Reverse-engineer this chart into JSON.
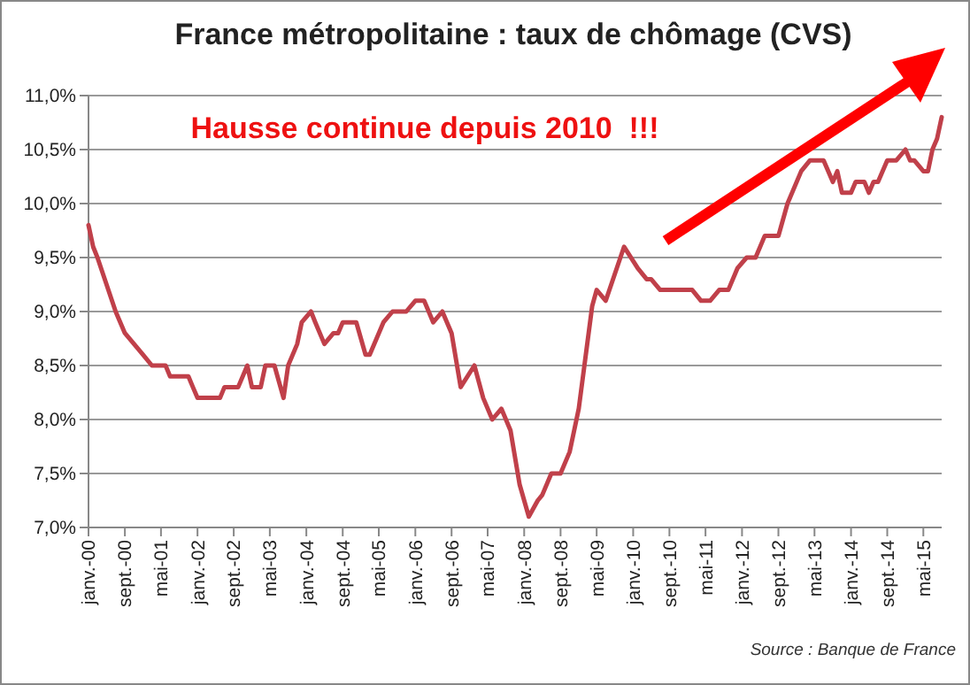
{
  "chart_data": {
    "type": "line",
    "title": "France métropolitaine : taux de chômage (CVS)",
    "annotations": [
      "Hausse continue depuis 2010  !!!",
      "Source : Banque de France"
    ],
    "x": [
      "2000-01",
      "2000-02",
      "2000-03",
      "2000-07",
      "2000-09",
      "2000-11",
      "2001-01",
      "2001-03",
      "2001-06",
      "2001-07",
      "2001-11",
      "2001-12",
      "2002-01",
      "2002-06",
      "2002-07",
      "2002-10",
      "2002-12",
      "2003-01",
      "2003-03",
      "2003-04",
      "2003-06",
      "2003-08",
      "2003-09",
      "2003-11",
      "2003-12",
      "2004-02",
      "2004-03",
      "2004-05",
      "2004-07",
      "2004-08",
      "2004-09",
      "2004-12",
      "2005-02",
      "2005-03",
      "2005-06",
      "2005-08",
      "2005-11",
      "2006-01",
      "2006-03",
      "2006-05",
      "2006-07",
      "2006-09",
      "2006-11",
      "2007-02",
      "2007-04",
      "2007-06",
      "2007-08",
      "2007-10",
      "2007-12",
      "2008-02",
      "2008-04",
      "2008-05",
      "2008-07",
      "2008-09",
      "2008-11",
      "2009-01",
      "2009-04",
      "2009-05",
      "2009-07",
      "2009-11",
      "2010-02",
      "2010-04",
      "2010-05",
      "2010-07",
      "2011-02",
      "2011-04",
      "2011-06",
      "2011-08",
      "2011-10",
      "2011-12",
      "2012-02",
      "2012-04",
      "2012-06",
      "2012-09",
      "2012-11",
      "2013-02",
      "2013-04",
      "2013-07",
      "2013-09",
      "2013-10",
      "2013-11",
      "2014-01",
      "2014-02",
      "2014-04",
      "2014-05",
      "2014-06",
      "2014-07",
      "2014-09",
      "2014-11",
      "2015-01",
      "2015-02",
      "2015-03",
      "2015-05",
      "2015-06",
      "2015-07",
      "2015-08",
      "2015-09"
    ],
    "series": [
      {
        "color": "#c0404a",
        "values": [
          9.8,
          9.6,
          9.5,
          9.0,
          8.8,
          8.7,
          8.6,
          8.5,
          8.5,
          8.4,
          8.4,
          8.3,
          8.2,
          8.2,
          8.3,
          8.3,
          8.5,
          8.3,
          8.3,
          8.5,
          8.5,
          8.2,
          8.5,
          8.7,
          8.9,
          9.0,
          8.9,
          8.7,
          8.8,
          8.8,
          8.9,
          8.9,
          8.6,
          8.6,
          8.9,
          9.0,
          9.0,
          9.1,
          9.1,
          8.9,
          9.0,
          8.8,
          8.3,
          8.5,
          8.2,
          8.0,
          8.1,
          7.9,
          7.4,
          7.1,
          7.25,
          7.3,
          7.5,
          7.5,
          7.7,
          8.1,
          9.05,
          9.2,
          9.1,
          9.6,
          9.4,
          9.3,
          9.3,
          9.2,
          9.2,
          9.1,
          9.1,
          9.2,
          9.2,
          9.4,
          9.5,
          9.5,
          9.7,
          9.7,
          10.0,
          10.3,
          10.4,
          10.4,
          10.2,
          10.3,
          10.1,
          10.1,
          10.2,
          10.2,
          10.1,
          10.2,
          10.2,
          10.4,
          10.4,
          10.5,
          10.4,
          10.4,
          10.3,
          10.3,
          10.5,
          10.6,
          10.8
        ]
      }
    ],
    "xlim": [
      "2000-01",
      "2015-09"
    ],
    "xticks": [
      {
        "value": "2000-01",
        "label": "janv.-00"
      },
      {
        "value": "2000-09",
        "label": "sept.-00"
      },
      {
        "value": "2001-05",
        "label": "mai-01"
      },
      {
        "value": "2002-01",
        "label": "janv.-02"
      },
      {
        "value": "2002-09",
        "label": "sept.-02"
      },
      {
        "value": "2003-05",
        "label": "mai-03"
      },
      {
        "value": "2004-01",
        "label": "janv.-04"
      },
      {
        "value": "2004-09",
        "label": "sept.-04"
      },
      {
        "value": "2005-05",
        "label": "mai-05"
      },
      {
        "value": "2006-01",
        "label": "janv.-06"
      },
      {
        "value": "2006-09",
        "label": "sept.-06"
      },
      {
        "value": "2007-05",
        "label": "mai-07"
      },
      {
        "value": "2008-01",
        "label": "janv.-08"
      },
      {
        "value": "2008-09",
        "label": "sept.-08"
      },
      {
        "value": "2009-05",
        "label": "mai-09"
      },
      {
        "value": "2010-01",
        "label": "janv.-10"
      },
      {
        "value": "2010-09",
        "label": "sept.-10"
      },
      {
        "value": "2011-05",
        "label": "mai-11"
      },
      {
        "value": "2012-01",
        "label": "janv.-12"
      },
      {
        "value": "2012-09",
        "label": "sept.-12"
      },
      {
        "value": "2013-05",
        "label": "mai-13"
      },
      {
        "value": "2014-01",
        "label": "janv.-14"
      },
      {
        "value": "2014-09",
        "label": "sept.-14"
      },
      {
        "value": "2015-05",
        "label": "mai-15"
      }
    ],
    "ylim": [
      7,
      11
    ],
    "yticks": [
      {
        "value": 7,
        "label": "7,0%"
      },
      {
        "value": 7.5,
        "label": "7,5%"
      },
      {
        "value": 8,
        "label": "8,0%"
      },
      {
        "value": 8.5,
        "label": "8,5%"
      },
      {
        "value": 9,
        "label": "9,0%"
      },
      {
        "value": 9.5,
        "label": "9,5%"
      },
      {
        "value": 10,
        "label": "10,0%"
      },
      {
        "value": 10.5,
        "label": "10,5%"
      },
      {
        "value": 11,
        "label": "11,0%"
      }
    ],
    "grid": "y",
    "marker": "none",
    "line_style": "solid"
  }
}
